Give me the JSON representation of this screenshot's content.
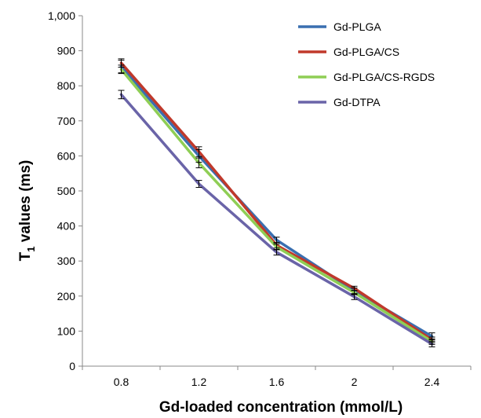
{
  "chart_data": {
    "type": "line",
    "title": "",
    "xlabel": "Gd-loaded concentration (mmol/L)",
    "ylabel_main": "T",
    "ylabel_sub": "1",
    "ylabel_rest": " values (ms)",
    "categories": [
      "0.8",
      "1.2",
      "1.6",
      "2",
      "2.4"
    ],
    "ylim": [
      0,
      1000
    ],
    "yticks": [
      "0",
      "100",
      "200",
      "300",
      "400",
      "500",
      "600",
      "700",
      "800",
      "900",
      "1,000"
    ],
    "grid": false,
    "legend_position": "top-right",
    "series": [
      {
        "name": "Gd-PLGA",
        "color": "#3a6fb0",
        "values": [
          855,
          600,
          360,
          215,
          85
        ],
        "errors": [
          18,
          18,
          8,
          8,
          10
        ]
      },
      {
        "name": "Gd-PLGA/CS",
        "color": "#c0392b",
        "values": [
          865,
          612,
          345,
          222,
          75
        ],
        "errors": [
          12,
          14,
          8,
          6,
          8
        ]
      },
      {
        "name": "Gd-PLGA/CS-RGDS",
        "color": "#8fce55",
        "values": [
          847,
          580,
          340,
          210,
          70
        ],
        "errors": [
          12,
          14,
          8,
          6,
          8
        ]
      },
      {
        "name": "Gd-DTPA",
        "color": "#6a64a8",
        "values": [
          775,
          520,
          325,
          198,
          63
        ],
        "errors": [
          12,
          10,
          8,
          8,
          8
        ]
      }
    ]
  }
}
